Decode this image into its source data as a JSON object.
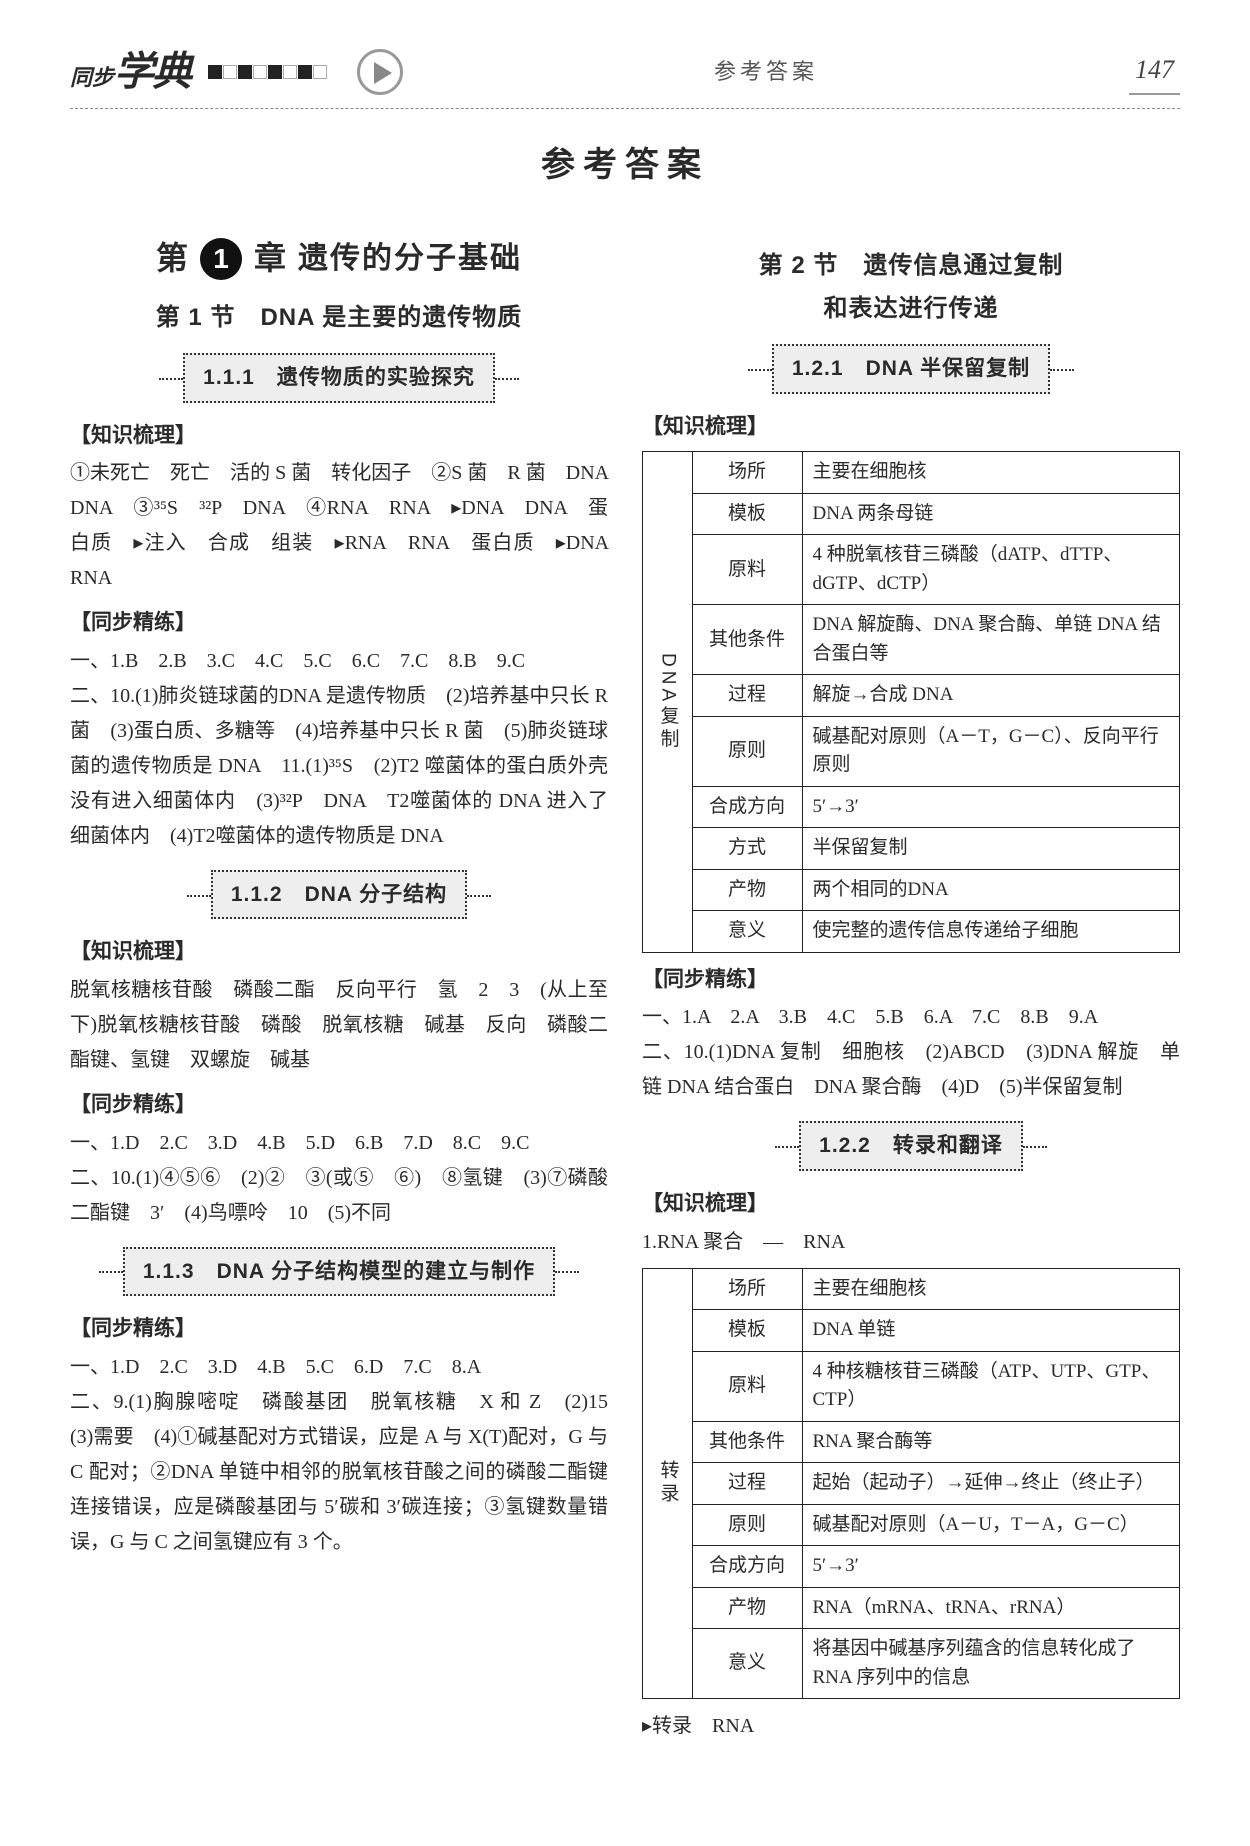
{
  "header": {
    "logo_small": "同步",
    "logo_big": "学典",
    "title": "参考答案",
    "page_num": "147"
  },
  "main_title": "参考答案",
  "left": {
    "chapter": {
      "pre": "第",
      "num": "1",
      "post": "章",
      "title": "遗传的分子基础"
    },
    "sec1": "第 1 节　DNA 是主要的遗传物质",
    "sub111": "1.1.1　遗传物质的实验探究",
    "kl": "知识梳理",
    "p111": "①未死亡　死亡　活的 S 菌　转化因子　②S 菌　R 菌　DNA　DNA　③³⁵S　³²P　DNA　④RNA　RNA　▸DNA　DNA　蛋白质　▸注入　合成　组装　▸RNA　RNA　蛋白质　▸DNA　RNA",
    "jl": "同步精练",
    "ans111a": "一、1.B　2.B　3.C　4.C　5.C　6.C　7.C　8.B　9.C",
    "ans111b": "二、10.(1)肺炎链球菌的DNA 是遗传物质　(2)培养基中只长 R 菌　(3)蛋白质、多糖等　(4)培养基中只长 R 菌　(5)肺炎链球菌的遗传物质是 DNA　11.(1)³⁵S　(2)T2 噬菌体的蛋白质外壳没有进入细菌体内　(3)³²P　DNA　T2噬菌体的 DNA 进入了细菌体内　(4)T2噬菌体的遗传物质是 DNA",
    "sub112": "1.1.2　DNA 分子结构",
    "p112": "脱氧核糖核苷酸　磷酸二酯　反向平行　氢　2　3　(从上至下)脱氧核糖核苷酸　磷酸　脱氧核糖　碱基　反向　磷酸二酯键、氢键　双螺旋　碱基",
    "ans112a": "一、1.D　2.C　3.D　4.B　5.D　6.B　7.D　8.C　9.C",
    "ans112b": "二、10.(1)④⑤⑥　(2)②　③(或⑤　⑥)　⑧氢键　(3)⑦磷酸二酯键　3′　(4)鸟嘌呤　10　(5)不同",
    "sub113": "1.1.3　DNA 分子结构模型的建立与制作",
    "ans113a": "一、1.D　2.C　3.D　4.B　5.C　6.D　7.C　8.A",
    "ans113b": "二、9.(1)胸腺嘧啶　磷酸基团　脱氧核糖　X 和 Z　(2)15　(3)需要　(4)①碱基配对方式错误，应是 A 与 X(T)配对，G 与 C 配对；②DNA 单链中相邻的脱氧核苷酸之间的磷酸二酯键连接错误，应是磷酸基团与 5′碳和 3′碳连接；③氢键数量错误，G 与 C 之间氢键应有 3 个。"
  },
  "right": {
    "sec2a": "第 2 节　遗传信息通过复制",
    "sec2b": "和表达进行传递",
    "sub121": "1.2.1　DNA 半保留复制",
    "kl": "知识梳理",
    "t1": {
      "side": "DNA复制",
      "rows": [
        [
          "场所",
          "主要在细胞核"
        ],
        [
          "模板",
          "DNA 两条母链"
        ],
        [
          "原料",
          "4 种脱氧核苷三磷酸（dATP、dTTP、dGTP、dCTP）"
        ],
        [
          "其他条件",
          "DNA 解旋酶、DNA 聚合酶、单链 DNA 结合蛋白等"
        ],
        [
          "过程",
          "解旋→合成 DNA"
        ],
        [
          "原则",
          "碱基配对原则（A－T，G－C）、反向平行原则"
        ],
        [
          "合成方向",
          "5′→3′"
        ],
        [
          "方式",
          "半保留复制"
        ],
        [
          "产物",
          "两个相同的DNA"
        ],
        [
          "意义",
          "使完整的遗传信息传递给子细胞"
        ]
      ]
    },
    "jl": "同步精练",
    "ans121a": "一、1.A　2.A　3.B　4.C　5.B　6.A　7.C　8.B　9.A",
    "ans121b": "二、10.(1)DNA 复制　细胞核　(2)ABCD　(3)DNA 解旋　单链 DNA 结合蛋白　DNA 聚合酶　(4)D　(5)半保留复制",
    "sub122": "1.2.2　转录和翻译",
    "p122": "1.RNA 聚合　—　RNA",
    "t2": {
      "side": "转录",
      "rows": [
        [
          "场所",
          "主要在细胞核"
        ],
        [
          "模板",
          "DNA 单链"
        ],
        [
          "原料",
          "4 种核糖核苷三磷酸（ATP、UTP、GTP、CTP）"
        ],
        [
          "其他条件",
          "RNA 聚合酶等"
        ],
        [
          "过程",
          "起始（起动子）→延伸→终止（终止子）"
        ],
        [
          "原则",
          "碱基配对原则（A－U，T－A，G－C）"
        ],
        [
          "合成方向",
          "5′→3′"
        ],
        [
          "产物",
          "RNA（mRNA、tRNA、rRNA）"
        ],
        [
          "意义",
          "将基因中碱基序列蕴含的信息转化成了 RNA 序列中的信息"
        ]
      ]
    },
    "foot": "▸转录　RNA"
  }
}
